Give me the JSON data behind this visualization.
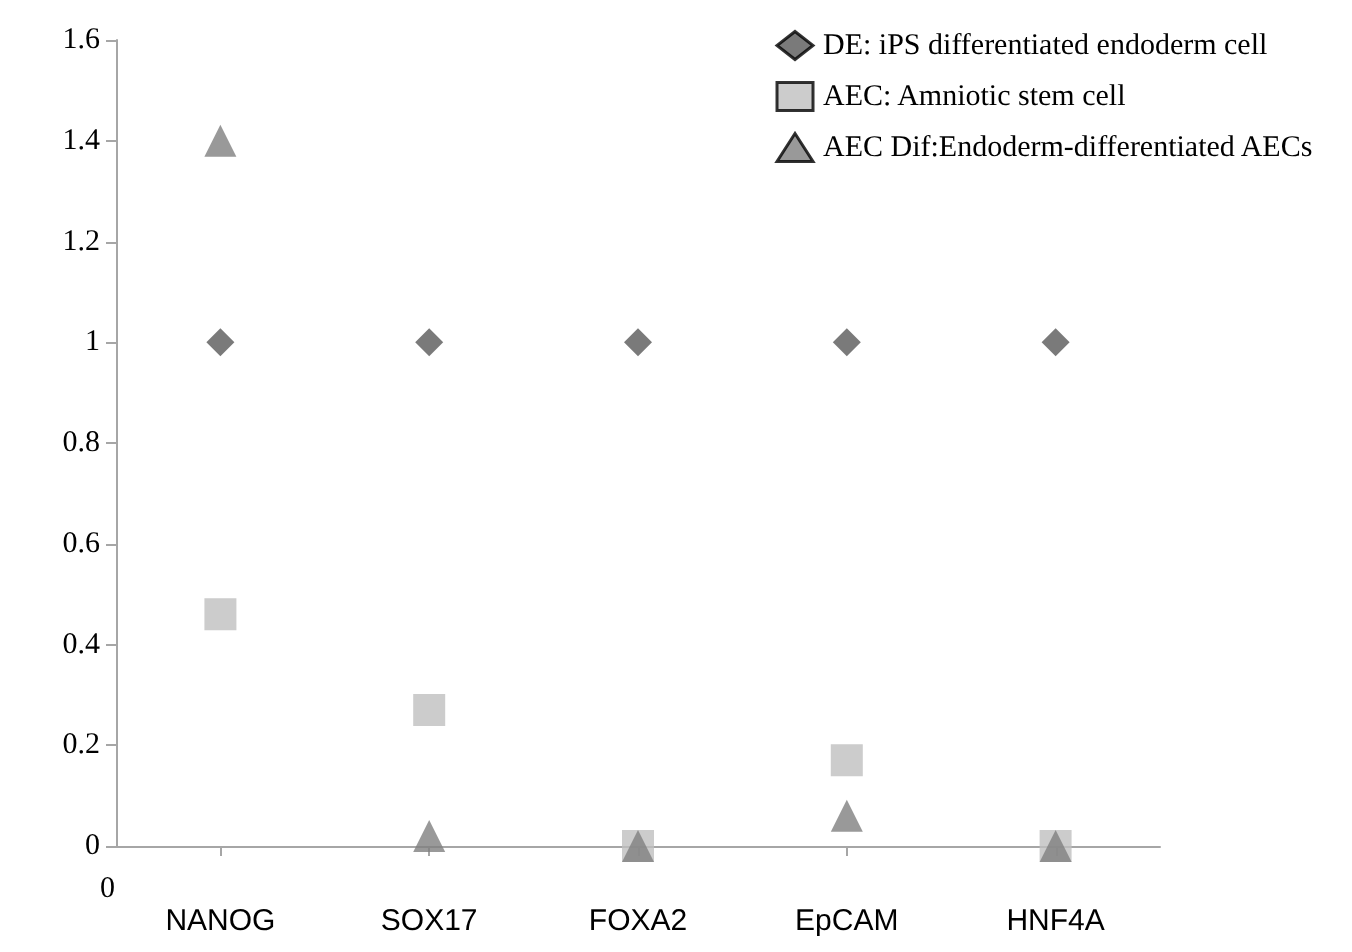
{
  "chart_data": {
    "type": "scatter",
    "categories": [
      "NANOG",
      "SOX17",
      "FOXA2",
      "EpCAM",
      "HNF4A"
    ],
    "annotations": [
      "0"
    ],
    "series": [
      {
        "name": "DE: iPS differentiated endoderm cell",
        "color": "#595959",
        "marker": "diamond",
        "values": [
          1,
          1,
          1,
          1,
          1
        ]
      },
      {
        "name": "AEC: Amniotic stem cell",
        "color": "#bfbfbf",
        "marker": "square",
        "values": [
          0.46,
          0.27,
          0,
          0.17,
          0
        ]
      },
      {
        "name": "AEC Dif:Endoderm-differentiated AECs",
        "color": "#808080",
        "marker": "triangle",
        "values": [
          1.4,
          0.02,
          0,
          0.06,
          0
        ]
      }
    ],
    "ylim": [
      0,
      1.6
    ],
    "yticks": [
      0,
      0.2,
      0.4,
      0.6,
      0.8,
      1,
      1.2,
      1.4,
      1.6
    ],
    "grid": false,
    "legend": "top right"
  }
}
